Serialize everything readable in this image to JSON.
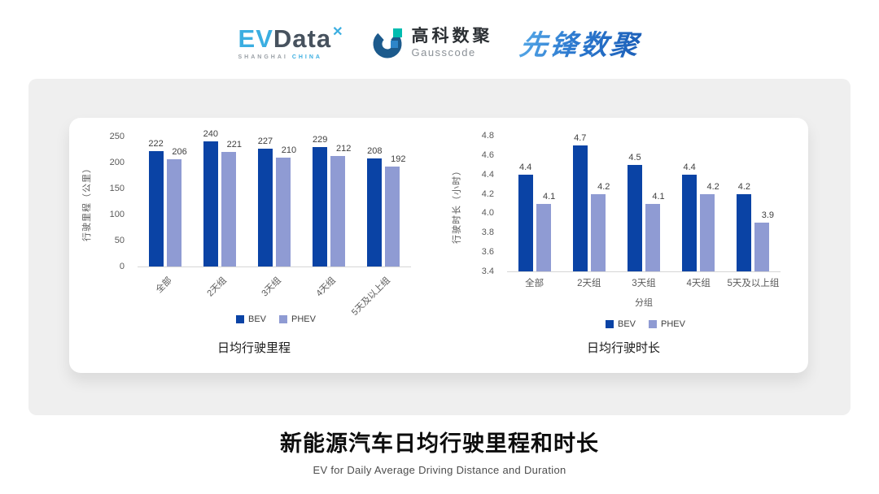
{
  "logos": {
    "evdata": {
      "ev": "EV",
      "data": "Data",
      "x_icon": "✕",
      "sub_left": "SHANGHAI",
      "sub_right": "CHINA"
    },
    "gausscode": {
      "cn": "高科数聚",
      "en": "Gausscode"
    },
    "xianfeng": "先锋数聚"
  },
  "chart_data": [
    {
      "type": "bar",
      "title": "日均行驶里程",
      "ylabel": "行驶里程（公里）",
      "xlabel": "",
      "categories": [
        "全部",
        "2天组",
        "3天组",
        "4天组",
        "5天及以上组"
      ],
      "series": [
        {
          "name": "BEV",
          "color": "#0A43A5",
          "values": [
            222,
            240,
            227,
            229,
            208
          ]
        },
        {
          "name": "PHEV",
          "color": "#8F9BD3",
          "values": [
            206,
            221,
            210,
            212,
            192
          ]
        }
      ],
      "ylim": [
        0,
        250
      ],
      "ytick_step": 50,
      "ytick_decimals": 0,
      "label_decimals": 0,
      "rotate_xlabels": true,
      "grid": false,
      "legend_position": "bottom"
    },
    {
      "type": "bar",
      "title": "日均行驶时长",
      "ylabel": "行驶时长（小时）",
      "xlabel": "分组",
      "categories": [
        "全部",
        "2天组",
        "3天组",
        "4天组",
        "5天及以上组"
      ],
      "series": [
        {
          "name": "BEV",
          "color": "#0A43A5",
          "values": [
            4.4,
            4.7,
            4.5,
            4.4,
            4.2
          ]
        },
        {
          "name": "PHEV",
          "color": "#8F9BD3",
          "values": [
            4.1,
            4.2,
            4.1,
            4.2,
            3.9
          ]
        }
      ],
      "ylim": [
        3.4,
        4.8
      ],
      "ytick_step": 0.2,
      "ytick_decimals": 1,
      "label_decimals": 1,
      "rotate_xlabels": false,
      "grid": false,
      "legend_position": "bottom"
    }
  ],
  "footer": {
    "title": "新能源汽车日均行驶里程和时长",
    "subtitle": "EV for Daily Average Driving Distance and Duration"
  },
  "colors": {
    "bev": "#0A43A5",
    "phev": "#8F9BD3",
    "panel": "#EFEFEF"
  }
}
